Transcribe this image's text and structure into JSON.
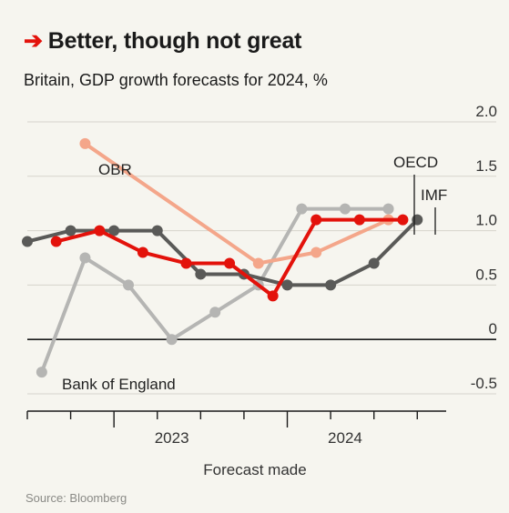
{
  "header": {
    "title": "Better, though not great",
    "subtitle": "Britain, GDP growth forecasts for 2024, %",
    "source": "Source: Bloomberg"
  },
  "colors": {
    "red": "#e3120b",
    "obr": "#f4a68a",
    "boe": "#b5b5b3",
    "oecd": "#e3120b",
    "imf": "#5a5a58",
    "grid": "#d6d4cc"
  },
  "chart_data": {
    "type": "line",
    "xlabel": "Forecast made",
    "ylabel": "",
    "ylim": [
      -0.5,
      2.0
    ],
    "yticks": [
      -0.5,
      0,
      0.5,
      1.0,
      1.5,
      2.0
    ],
    "ytick_labels": [
      "-0.5",
      "0",
      "0.5",
      "1.0",
      "1.5",
      "2.0"
    ],
    "xlim": [
      "2022-07",
      "2024-12"
    ],
    "x_tick_labels": [
      {
        "label": "2023",
        "x": "2023-05"
      },
      {
        "label": "2024",
        "x": "2024-05"
      }
    ],
    "grid": true,
    "series": [
      {
        "name": "OBR",
        "color": "#f4a68a",
        "x": [
          "2022-11",
          "2023-11",
          "2024-03",
          "2024-08"
        ],
        "y": [
          1.8,
          0.7,
          0.8,
          1.1
        ]
      },
      {
        "name": "Bank of England",
        "color": "#b5b5b3",
        "x": [
          "2022-08",
          "2022-11",
          "2023-02",
          "2023-05",
          "2023-08",
          "2023-11",
          "2024-02",
          "2024-05",
          "2024-08"
        ],
        "y": [
          -0.3,
          0.75,
          0.5,
          0.0,
          0.25,
          0.5,
          1.2,
          1.2,
          1.2
        ]
      },
      {
        "name": "IMF",
        "color": "#5a5a58",
        "x": [
          "2022-07",
          "2022-10",
          "2023-01",
          "2023-04",
          "2023-07",
          "2023-10",
          "2024-01",
          "2024-04",
          "2024-07",
          "2024-10"
        ],
        "y": [
          0.9,
          1.0,
          1.0,
          1.0,
          0.6,
          0.6,
          0.5,
          0.5,
          0.7,
          1.1
        ]
      },
      {
        "name": "OECD",
        "color": "#e3120b",
        "x": [
          "2022-09",
          "2022-12",
          "2023-03",
          "2023-06",
          "2023-09",
          "2023-12",
          "2024-03",
          "2024-06",
          "2024-09"
        ],
        "y": [
          0.9,
          1.0,
          0.8,
          0.7,
          0.7,
          0.4,
          1.1,
          1.1,
          1.1
        ]
      }
    ],
    "annotations": [
      {
        "text": "OBR",
        "series": "OBR"
      },
      {
        "text": "Bank of England",
        "series": "Bank of England"
      },
      {
        "text": "OECD",
        "series": "OECD"
      },
      {
        "text": "IMF",
        "series": "IMF"
      }
    ]
  }
}
